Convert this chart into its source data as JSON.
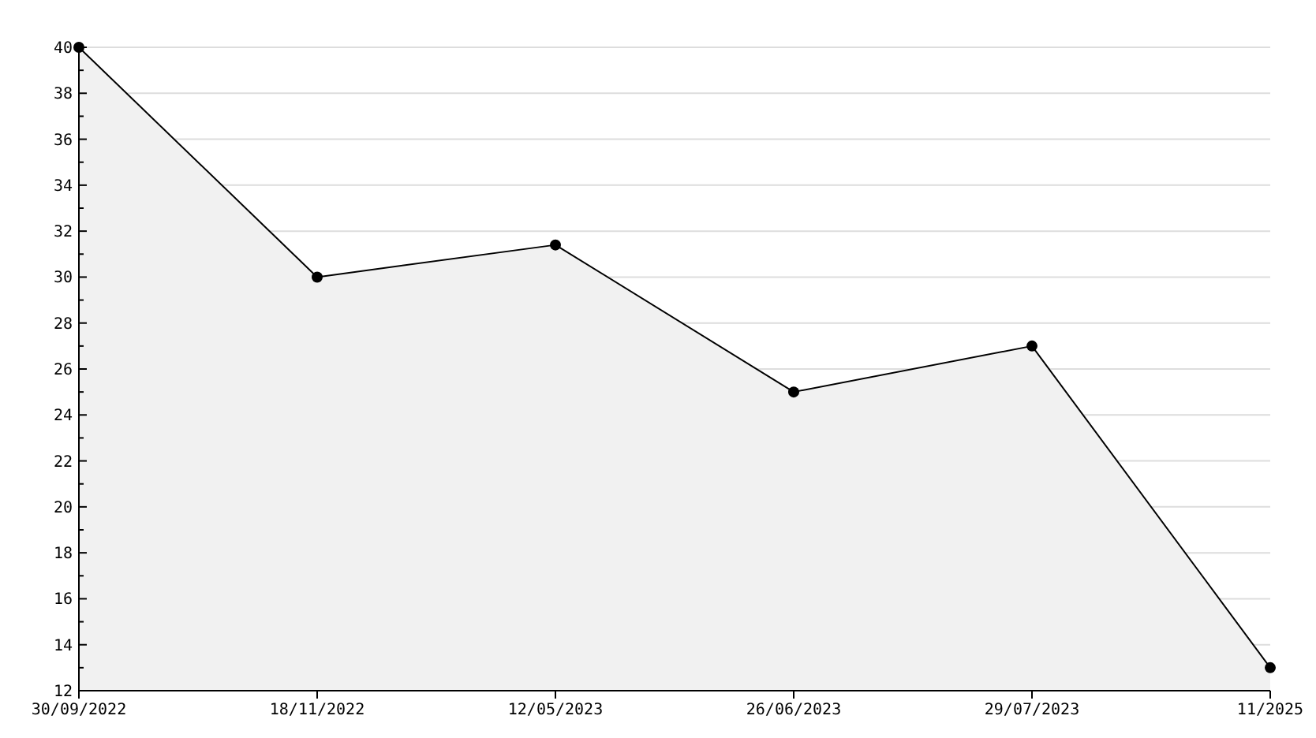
{
  "chart_data": {
    "type": "area",
    "categories": [
      "30/09/2022",
      "18/11/2022",
      "12/05/2023",
      "26/06/2023",
      "29/07/2023",
      "11/2025"
    ],
    "series": [
      {
        "color": "#000000",
        "values": [
          40,
          30,
          31.4,
          25,
          27,
          13
        ]
      }
    ],
    "ylim": [
      12,
      40
    ],
    "yticks": [
      12,
      {
        "value": 13,
        "label": null
      },
      14,
      {
        "value": 15,
        "label": null
      },
      16,
      {
        "value": 17,
        "label": null
      },
      18,
      {
        "value": 19,
        "label": null
      },
      20,
      {
        "value": 21,
        "label": null
      },
      22,
      {
        "value": 23,
        "label": null
      },
      24,
      {
        "value": 25,
        "label": null
      },
      26,
      {
        "value": 27,
        "label": null
      },
      28,
      {
        "value": 29,
        "label": null
      },
      30,
      {
        "value": 31,
        "label": null
      },
      32,
      {
        "value": 33,
        "label": null
      },
      34,
      {
        "value": 35,
        "label": null
      },
      36,
      {
        "value": 37,
        "label": null
      },
      38,
      {
        "value": 39,
        "label": null
      },
      40
    ],
    "grid": "y",
    "marker": "circle",
    "line_style": "solid"
  }
}
